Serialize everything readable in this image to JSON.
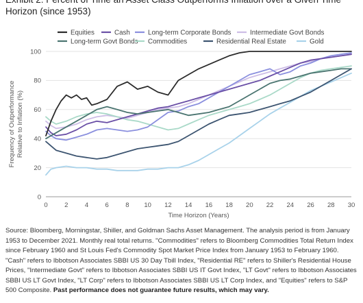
{
  "chart_data": {
    "type": "line",
    "title": "Exhibit 2: Percent of Time an Asset Class Outperforms Inflation over a Given Time Horizon (since 1953)",
    "xlabel": "Time Horizon (Years)",
    "ylabel_line1": "Frequency of Outperformance",
    "ylabel_line2": "Relative to Inflation (%)",
    "xlim": [
      0,
      30
    ],
    "ylim": [
      0,
      100
    ],
    "xticks": [
      0,
      2,
      4,
      6,
      8,
      10,
      12,
      14,
      16,
      18,
      20,
      22,
      24,
      26,
      28,
      30
    ],
    "yticks": [
      0,
      20,
      40,
      60,
      80,
      100
    ],
    "grid": "horizontal",
    "legend_position": "top",
    "series": [
      {
        "name": "Equities",
        "color": "#2b2b2b",
        "x": [
          0,
          0.5,
          1,
          1.5,
          2,
          2.5,
          3,
          3.5,
          4,
          4.5,
          5,
          6,
          7,
          8,
          9,
          10,
          11,
          12,
          13,
          14,
          15,
          16,
          17,
          18,
          19,
          20,
          21,
          22,
          23,
          24,
          25,
          26,
          27,
          28,
          29,
          30
        ],
        "y": [
          42,
          52,
          60,
          66,
          70,
          68,
          70,
          67,
          68,
          63,
          64,
          67,
          76,
          79,
          74,
          76,
          72,
          70,
          80,
          84,
          88,
          91,
          94,
          97,
          99,
          100,
          100,
          100,
          100,
          100,
          100,
          100,
          100,
          100,
          100,
          100
        ]
      },
      {
        "name": "Cash",
        "color": "#6a4fa6",
        "x": [
          0,
          0.5,
          1,
          2,
          3,
          4,
          5,
          6,
          7,
          8,
          9,
          10,
          11,
          12,
          13,
          14,
          15,
          16,
          17,
          18,
          19,
          20,
          21,
          22,
          23,
          24,
          25,
          26,
          27,
          28,
          29,
          30
        ],
        "y": [
          48,
          44,
          42,
          43,
          46,
          50,
          52,
          51,
          53,
          55,
          57,
          59,
          61,
          62,
          64,
          66,
          68,
          70,
          72,
          74,
          76,
          78,
          80,
          83,
          86,
          89,
          92,
          94,
          95,
          96,
          97,
          98
        ]
      },
      {
        "name": "Long-term Corporate Bonds",
        "color": "#8a8fde",
        "x": [
          0,
          0.5,
          1,
          2,
          3,
          4,
          5,
          6,
          7,
          8,
          9,
          10,
          11,
          12,
          13,
          14,
          15,
          16,
          17,
          18,
          19,
          20,
          21,
          22,
          23,
          24,
          25,
          26,
          27,
          28,
          29,
          30
        ],
        "y": [
          45,
          42,
          40,
          39,
          41,
          43,
          46,
          47,
          46,
          45,
          46,
          48,
          53,
          58,
          59,
          62,
          64,
          68,
          72,
          76,
          80,
          84,
          86,
          88,
          84,
          86,
          90,
          92,
          95,
          97,
          98,
          99
        ]
      },
      {
        "name": "Intermediate Govt Bonds",
        "color": "#cdbde6",
        "x": [
          0,
          0.5,
          1,
          2,
          3,
          4,
          5,
          6,
          7,
          8,
          9,
          10,
          11,
          12,
          13,
          14,
          15,
          16,
          17,
          18,
          19,
          20,
          21,
          22,
          23,
          24,
          25,
          26,
          27,
          28,
          29,
          30
        ],
        "y": [
          52,
          49,
          47,
          48,
          50,
          53,
          55,
          56,
          55,
          54,
          56,
          58,
          60,
          61,
          62,
          64,
          67,
          70,
          73,
          76,
          79,
          82,
          84,
          86,
          88,
          90,
          92,
          93,
          95,
          96,
          97,
          98
        ]
      },
      {
        "name": "Long-term Govt Bonds",
        "color": "#4a7470",
        "x": [
          0,
          0.5,
          1,
          2,
          3,
          4,
          5,
          6,
          7,
          8,
          9,
          10,
          11,
          12,
          13,
          14,
          15,
          16,
          17,
          18,
          19,
          20,
          21,
          22,
          23,
          24,
          25,
          26,
          27,
          28,
          29,
          30
        ],
        "y": [
          40,
          42,
          44,
          48,
          52,
          56,
          60,
          62,
          60,
          58,
          57,
          58,
          59,
          60,
          58,
          56,
          57,
          58,
          60,
          62,
          66,
          70,
          74,
          78,
          80,
          81,
          83,
          85,
          86,
          87,
          88,
          88
        ]
      },
      {
        "name": "Commodities",
        "color": "#a9d9c8",
        "x": [
          0,
          0.5,
          1,
          2,
          3,
          4,
          5,
          6,
          7,
          8,
          9,
          10,
          11,
          12,
          13,
          14,
          15,
          16,
          17,
          18,
          19,
          20,
          21,
          22,
          23,
          24,
          25,
          26,
          27,
          28,
          29,
          30
        ],
        "y": [
          55,
          52,
          50,
          52,
          55,
          57,
          58,
          57,
          55,
          53,
          52,
          50,
          48,
          46,
          47,
          50,
          53,
          56,
          58,
          60,
          62,
          64,
          67,
          70,
          74,
          78,
          82,
          85,
          87,
          88,
          89,
          90
        ]
      },
      {
        "name": "Residential Real Estate",
        "color": "#3c5470",
        "x": [
          0,
          0.5,
          1,
          2,
          3,
          4,
          5,
          6,
          7,
          8,
          9,
          10,
          11,
          12,
          13,
          14,
          15,
          16,
          17,
          18,
          19,
          20,
          21,
          22,
          23,
          24,
          25,
          26,
          27,
          28,
          29,
          30
        ],
        "y": [
          38,
          35,
          32,
          30,
          28,
          27,
          26,
          27,
          29,
          31,
          33,
          34,
          35,
          36,
          38,
          42,
          46,
          50,
          53,
          56,
          57,
          58,
          60,
          62,
          64,
          66,
          69,
          72,
          76,
          80,
          84,
          88
        ]
      },
      {
        "name": "Gold",
        "color": "#a8d2ea",
        "x": [
          0,
          0.5,
          1,
          2,
          3,
          4,
          5,
          6,
          7,
          8,
          9,
          10,
          11,
          12,
          13,
          14,
          15,
          16,
          17,
          18,
          19,
          20,
          21,
          22,
          23,
          24,
          25,
          26,
          27,
          28,
          29,
          30
        ],
        "y": [
          15,
          19,
          20,
          21,
          20,
          20,
          19,
          19,
          18,
          18,
          18,
          19,
          19,
          20,
          20,
          22,
          25,
          29,
          33,
          37,
          42,
          47,
          52,
          57,
          61,
          65,
          69,
          73,
          76,
          79,
          82,
          85
        ]
      }
    ]
  },
  "source": {
    "text": "Source: Bloomberg, Morningstar, Shiller, and Goldman Sachs Asset Management. The analysis period is from January 1953 to December 2021. Monthly real total returns. \"Commodities\" refers to Bloomberg Commodities Total Return Index since February 1960 and St Louis Fed's Commodity Spot Market Price Index from January 1953 to February 1960. \"Cash\" refers to Ibbotson Associates SBBI US 30 Day Tbill Index, \"Residential RE\" refers to Shiller's Residential House Prices, \"Intermediate Govt\" refers to Ibbotson Associates SBBI US IT Govt Index, \"LT Govt\" refers to Ibbotson Associates SBBI US LT Govt Index, \"LT Corp\" refers to Ibbotson Associates SBBI US LT Corp Index, and \"Equities\" refers to S&P 500 Composite.",
    "bold": "Past performance does not guarantee future results, which may vary."
  }
}
